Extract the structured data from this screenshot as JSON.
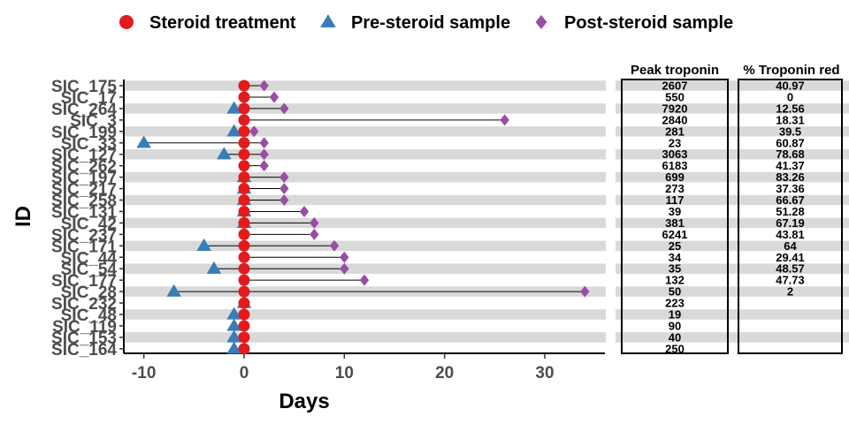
{
  "chart_data": {
    "type": "scatter",
    "xlabel": "Days",
    "ylabel": "ID",
    "xlim": [
      -12,
      36
    ],
    "xticks": [
      -10,
      0,
      10,
      20,
      30
    ],
    "legend_position": "top",
    "legend": [
      {
        "name": "Steroid treatment",
        "shape": "circle",
        "color": "#e41a1c"
      },
      {
        "name": "Pre-steroid sample",
        "shape": "triangle",
        "color": "#377eb8"
      },
      {
        "name": "Post-steroid sample",
        "shape": "diamond",
        "color": "#984ea3"
      }
    ],
    "table_headers": [
      "Peak troponin",
      "% Troponin red"
    ],
    "rows": [
      {
        "id": "SIC_175",
        "pre": null,
        "post": 2,
        "peak": "2607",
        "pct": "40.97"
      },
      {
        "id": "SIC_17",
        "pre": null,
        "post": 3,
        "peak": "550",
        "pct": "0"
      },
      {
        "id": "SIC_264",
        "pre": -1,
        "post": 4,
        "peak": "7920",
        "pct": "12.56"
      },
      {
        "id": "SIC_3",
        "pre": null,
        "post": 26,
        "peak": "2840",
        "pct": "18.31"
      },
      {
        "id": "SIC_199",
        "pre": -1,
        "post": 1,
        "peak": "281",
        "pct": "39.5"
      },
      {
        "id": "SIC_33",
        "pre": -10,
        "post": 2,
        "peak": "23",
        "pct": "60.87"
      },
      {
        "id": "SIC_127",
        "pre": -2,
        "post": 2,
        "peak": "3063",
        "pct": "78.68"
      },
      {
        "id": "SIC_262",
        "pre": null,
        "post": 2,
        "peak": "6183",
        "pct": "41.37"
      },
      {
        "id": "SIC_197",
        "pre": 0,
        "post": 4,
        "peak": "699",
        "pct": "83.26"
      },
      {
        "id": "SIC_217",
        "pre": 0,
        "post": 4,
        "peak": "273",
        "pct": "37.36"
      },
      {
        "id": "SIC_258",
        "pre": 0,
        "post": 4,
        "peak": "117",
        "pct": "66.67"
      },
      {
        "id": "SIC_131",
        "pre": 0,
        "post": 6,
        "peak": "39",
        "pct": "51.28"
      },
      {
        "id": "SIC_42",
        "pre": 0,
        "post": 7,
        "peak": "381",
        "pct": "67.19"
      },
      {
        "id": "SIC_237",
        "pre": null,
        "post": 7,
        "peak": "6241",
        "pct": "43.81"
      },
      {
        "id": "SIC_171",
        "pre": -4,
        "post": 9,
        "peak": "25",
        "pct": "64"
      },
      {
        "id": "SIC_44",
        "pre": null,
        "post": 10,
        "peak": "34",
        "pct": "29.41"
      },
      {
        "id": "SIC_54",
        "pre": -3,
        "post": 10,
        "peak": "35",
        "pct": "48.57"
      },
      {
        "id": "SIC_177",
        "pre": null,
        "post": 12,
        "peak": "132",
        "pct": "47.73"
      },
      {
        "id": "SIC_28",
        "pre": -7,
        "post": 34,
        "peak": "50",
        "pct": "2"
      },
      {
        "id": "SIC_232",
        "pre": 0,
        "post": null,
        "peak": "223",
        "pct": ""
      },
      {
        "id": "SIC_48",
        "pre": -1,
        "post": null,
        "peak": "19",
        "pct": ""
      },
      {
        "id": "SIC_119",
        "pre": -1,
        "post": null,
        "peak": "90",
        "pct": ""
      },
      {
        "id": "SIC_153",
        "pre": -1,
        "post": null,
        "peak": "40",
        "pct": ""
      },
      {
        "id": "SIC_164",
        "pre": -1,
        "post": null,
        "peak": "250",
        "pct": ""
      }
    ],
    "steroid_day": 0
  }
}
